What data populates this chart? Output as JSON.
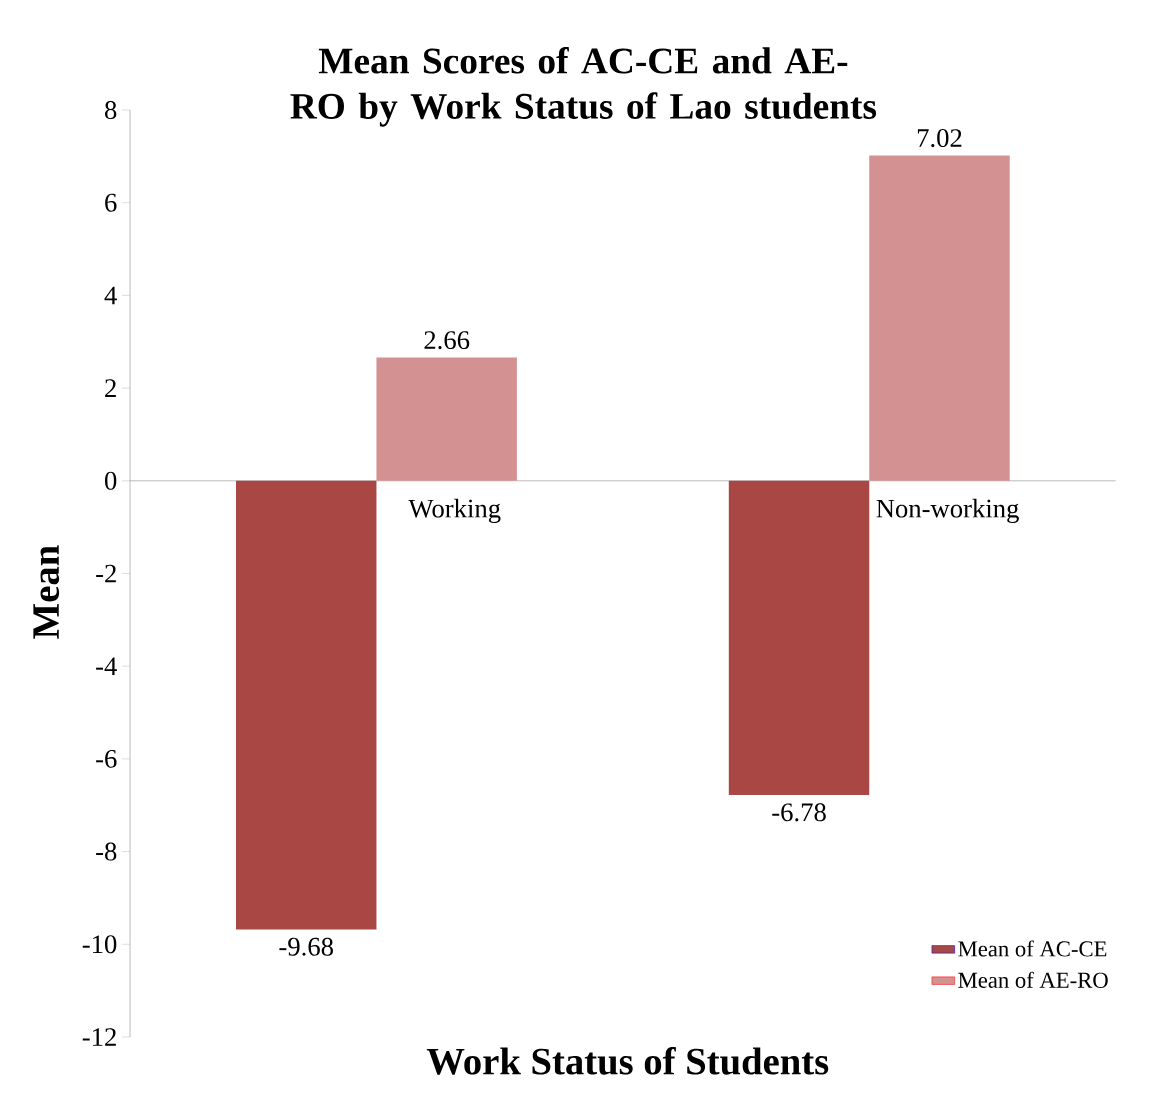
{
  "chart_data": {
    "type": "bar",
    "title": "Mean Scores of AC-CE and AE-RO by Work Status of Lao students",
    "xlabel": "Work Status of Students",
    "ylabel": "Mean",
    "categories": [
      "Working",
      "Non-working"
    ],
    "series": [
      {
        "name": "Mean of AC-CE",
        "color": "#a84744",
        "values": [
          -9.68,
          -6.78
        ]
      },
      {
        "name": "Mean of AE-RO",
        "color": "#d39191",
        "values": [
          2.66,
          7.02
        ]
      }
    ],
    "ylim": [
      -12,
      8
    ],
    "yticks": [
      -12,
      -10,
      -8,
      -6,
      -4,
      -2,
      0,
      2,
      4,
      6,
      8
    ],
    "data_labels": true,
    "legend": "bottom right",
    "grid": false
  }
}
